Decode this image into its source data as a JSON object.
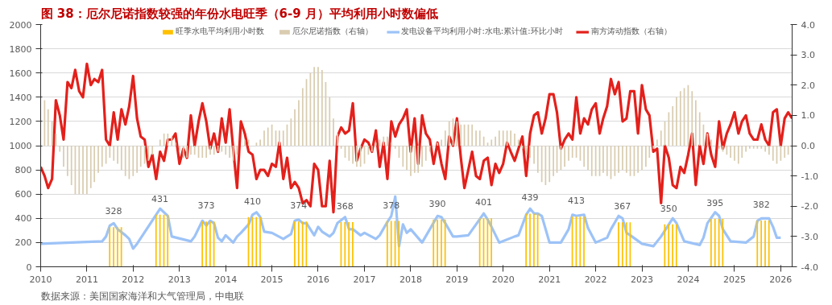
{
  "chart_data": {
    "type": "bar",
    "title": "图 38：厄尔尼诺指数较强的年份水电旺季（6-9 月）平均利用小时数偏低",
    "annotations": [
      "数据来源：美国国家海洋和大气管理局，中电联"
    ],
    "x": [
      "2010-01",
      "2010-02",
      "2010-03",
      "2010-04",
      "2010-05",
      "2010-06",
      "2010-07",
      "2010-08",
      "2010-09",
      "2010-10",
      "2010-11",
      "2010-12",
      "2011-01",
      "2011-02",
      "2011-03",
      "2011-04",
      "2011-05",
      "2011-06",
      "2011-07",
      "2011-08",
      "2011-09",
      "2011-10",
      "2011-11",
      "2011-12",
      "2012-01",
      "2012-02",
      "2012-03",
      "2012-04",
      "2012-05",
      "2012-06",
      "2012-07",
      "2012-08",
      "2012-09",
      "2012-10",
      "2012-11",
      "2012-12",
      "2013-01",
      "2013-02",
      "2013-03",
      "2013-04",
      "2013-05",
      "2013-06",
      "2013-07",
      "2013-08",
      "2013-09",
      "2013-10",
      "2013-11",
      "2013-12",
      "2014-01",
      "2014-02",
      "2014-03",
      "2014-04",
      "2014-05",
      "2014-06",
      "2014-07",
      "2014-08",
      "2014-09",
      "2014-10",
      "2014-11",
      "2014-12",
      "2015-01",
      "2015-02",
      "2015-03",
      "2015-04",
      "2015-05",
      "2015-06",
      "2015-07",
      "2015-08",
      "2015-09",
      "2015-10",
      "2015-11",
      "2015-12",
      "2016-01",
      "2016-02",
      "2016-03",
      "2016-04",
      "2016-05",
      "2016-06",
      "2016-07",
      "2016-08",
      "2016-09",
      "2016-10",
      "2016-11",
      "2016-12",
      "2017-01",
      "2017-02",
      "2017-03",
      "2017-04",
      "2017-05",
      "2017-06",
      "2017-07",
      "2017-08",
      "2017-09",
      "2017-10",
      "2017-11",
      "2017-12",
      "2018-01",
      "2018-02",
      "2018-03",
      "2018-04",
      "2018-05",
      "2018-06",
      "2018-07",
      "2018-08",
      "2018-09",
      "2018-10",
      "2018-11",
      "2018-12",
      "2019-01",
      "2019-02",
      "2019-03",
      "2019-04",
      "2019-05",
      "2019-06",
      "2019-07",
      "2019-08",
      "2019-09",
      "2019-10",
      "2019-11",
      "2019-12",
      "2020-01",
      "2020-02",
      "2020-03",
      "2020-04",
      "2020-05",
      "2020-06",
      "2020-07",
      "2020-08",
      "2020-09",
      "2020-10",
      "2020-11",
      "2020-12",
      "2021-01",
      "2021-02",
      "2021-03",
      "2021-04",
      "2021-05",
      "2021-06",
      "2021-07",
      "2021-08",
      "2021-09",
      "2021-10",
      "2021-11",
      "2021-12",
      "2022-01",
      "2022-02",
      "2022-03",
      "2022-04",
      "2022-05",
      "2022-06",
      "2022-07",
      "2022-08",
      "2022-09",
      "2022-10",
      "2022-11",
      "2022-12",
      "2023-01",
      "2023-02",
      "2023-03",
      "2023-04",
      "2023-05",
      "2023-06",
      "2023-07",
      "2023-08",
      "2023-09",
      "2023-10",
      "2023-11",
      "2023-12",
      "2024-01",
      "2024-02",
      "2024-03",
      "2024-04",
      "2024-05",
      "2024-06",
      "2024-07",
      "2024-08",
      "2024-09",
      "2024-10",
      "2024-11",
      "2024-12",
      "2025-01",
      "2025-02",
      "2025-03",
      "2025-04",
      "2025-05",
      "2025-06",
      "2025-07",
      "2025-08",
      "2025-09",
      "2025-10",
      "2025-11",
      "2025-12",
      "2026-01",
      "2026-02",
      "2026-03",
      "2026-04"
    ],
    "series": [
      {
        "name": "旺季水电平均利用小时数",
        "color": "#ffc000",
        "x": [
          "2011-06-30",
          "2011-07-31",
          "2011-08-31",
          "2011-09-30",
          "2012-06-30",
          "2012-07-31",
          "2012-08-31",
          "2012-09-30",
          "2013-06-30",
          "2013-07-31",
          "2013-08-31",
          "2013-09-30",
          "2014-06-30",
          "2014-07-31",
          "2014-08-31",
          "2014-09-30",
          "2015-06-30",
          "2015-07-31",
          "2015-08-31",
          "2015-09-30",
          "2016-06-30",
          "2016-07-31",
          "2016-08-31",
          "2016-09-30",
          "2017-06-30",
          "2017-07-31",
          "2017-08-31",
          "2017-09-30",
          "2018-06-30",
          "2018-07-31",
          "2018-08-31",
          "2018-09-30",
          "2019-06-30",
          "2019-07-31",
          "2019-08-31",
          "2019-09-30",
          "2020-06-30",
          "2020-07-31",
          "2020-08-31",
          "2020-09-30",
          "2021-06-30",
          "2021-07-31",
          "2021-08-31",
          "2021-09-30",
          "2022-06-30",
          "2022-07-31",
          "2022-08-31",
          "2022-09-30",
          "2023-06-30",
          "2023-07-31",
          "2023-08-31",
          "2023-09-30",
          "2024-06-30",
          "2024-07-31",
          "2024-08-31",
          "2024-09-30",
          "2025-06-30",
          "2025-07-31",
          "2025-08-31",
          "2025-09-30"
        ],
        "values": [
          328,
          328,
          328,
          328,
          431,
          431,
          431,
          431,
          373,
          373,
          373,
          373,
          410,
          410,
          410,
          410,
          374,
          374,
          374,
          374,
          368,
          368,
          368,
          368,
          378,
          378,
          378,
          378,
          390,
          390,
          390,
          390,
          401,
          401,
          401,
          401,
          439,
          439,
          439,
          439,
          413,
          413,
          413,
          413,
          367,
          367,
          367,
          367,
          350,
          350,
          350,
          350,
          395,
          395,
          395,
          395,
          382,
          382,
          382,
          382
        ],
        "value_labels": [
          null,
          "328",
          null,
          null,
          null,
          "431",
          null,
          null,
          null,
          "373",
          null,
          null,
          null,
          "410",
          null,
          null,
          null,
          "374",
          null,
          null,
          null,
          "368",
          null,
          null,
          null,
          "378",
          null,
          null,
          null,
          "390",
          null,
          null,
          null,
          "401",
          null,
          null,
          null,
          "439",
          null,
          null,
          null,
          "413",
          null,
          null,
          null,
          "367",
          null,
          null,
          null,
          "350",
          null,
          null,
          null,
          "395",
          null,
          null,
          null,
          "382",
          null,
          null
        ]
      },
      {
        "name": "厄尔尼诺指数（右轴）",
        "type": "bar",
        "axis": "y2",
        "color": "#d9ccb0",
        "values": [
          null,
          1.5,
          1.2,
          0.8,
          0.4,
          -0.2,
          -0.7,
          -1.0,
          -1.3,
          -1.6,
          -1.6,
          -1.6,
          -1.6,
          -1.4,
          -1.2,
          -0.9,
          -0.7,
          -0.6,
          -0.4,
          -0.5,
          -0.6,
          -0.8,
          -1.0,
          -1.1,
          -1.0,
          -0.9,
          -0.7,
          -0.6,
          -0.5,
          -0.3,
          0.0,
          0.2,
          0.4,
          0.4,
          0.3,
          0.1,
          -0.2,
          -0.4,
          -0.4,
          -0.3,
          -0.3,
          -0.4,
          -0.4,
          -0.4,
          -0.3,
          -0.3,
          -0.2,
          -0.2,
          -0.3,
          -0.4,
          -0.5,
          -0.3,
          0.0,
          0.2,
          0.2,
          0.0,
          0.1,
          0.2,
          0.5,
          0.6,
          0.7,
          0.5,
          0.5,
          0.5,
          0.7,
          0.9,
          1.2,
          1.5,
          1.9,
          2.2,
          2.4,
          2.6,
          2.6,
          2.5,
          2.1,
          1.6,
          0.9,
          0.4,
          -0.1,
          -0.4,
          -0.5,
          -0.6,
          -0.7,
          -0.7,
          -0.6,
          -0.3,
          -0.2,
          0.1,
          0.2,
          0.3,
          0.3,
          0.1,
          -0.1,
          -0.4,
          -0.7,
          -0.8,
          -1.0,
          -0.9,
          -0.9,
          -0.7,
          -0.5,
          -0.2,
          0.0,
          0.1,
          0.2,
          0.5,
          0.8,
          0.9,
          0.8,
          0.7,
          0.7,
          0.7,
          0.7,
          0.5,
          0.5,
          0.3,
          0.1,
          0.2,
          0.3,
          0.5,
          0.5,
          0.5,
          0.5,
          0.4,
          0.2,
          -0.1,
          -0.3,
          -0.4,
          -0.6,
          -0.9,
          -1.2,
          -1.3,
          -1.2,
          -1.0,
          -0.9,
          -0.8,
          -0.7,
          -0.5,
          -0.4,
          -0.4,
          -0.5,
          -0.7,
          -0.8,
          -1.0,
          -1.0,
          -1.0,
          -0.9,
          -1.0,
          -1.1,
          -1.0,
          -0.9,
          -0.8,
          -0.9,
          -1.0,
          -1.0,
          -0.9,
          -0.8,
          -0.7,
          -0.4,
          -0.1,
          0.2,
          0.5,
          0.8,
          1.1,
          1.3,
          1.6,
          1.8,
          1.9,
          2.0,
          1.8,
          1.5,
          1.1,
          0.7,
          0.4,
          0.2,
          0.0,
          -0.1,
          -0.2,
          -0.3,
          -0.4,
          -0.5,
          -0.6,
          -0.4,
          -0.2,
          -0.1,
          -0.1,
          -0.1,
          -0.1,
          -0.2,
          -0.3,
          -0.5,
          -0.6,
          -0.5,
          -0.4,
          -0.3,
          null
        ]
      },
      {
        "name": "发电设备平均利用小时:水电:累计值:环比小时",
        "type": "line",
        "color": "#9dc3f7",
        "x": [
          "2010-01",
          "2011-05",
          "2011-06",
          "2011-07",
          "2011-08",
          "2011-09",
          "2011-11",
          "2011-12",
          "2012-01",
          "2012-02",
          "2012-08",
          "2012-10",
          "2012-11",
          "2013-04",
          "2013-05",
          "2013-07",
          "2013-08",
          "2013-09",
          "2013-10",
          "2013-11",
          "2013-12",
          "2014-01",
          "2014-03",
          "2014-04",
          "2014-05",
          "2014-07",
          "2014-08",
          "2014-09",
          "2014-10",
          "2014-11",
          "2015-01",
          "2015-04",
          "2015-06",
          "2015-07",
          "2015-08",
          "2015-09",
          "2015-10",
          "2015-12",
          "2016-01",
          "2016-02",
          "2016-04",
          "2016-05",
          "2016-06",
          "2016-08",
          "2016-09",
          "2016-10",
          "2016-12",
          "2017-01",
          "2017-04",
          "2017-05",
          "2017-07",
          "2017-08",
          "2017-09",
          "2017-10",
          "2017-11",
          "2017-12",
          "2018-01",
          "2018-04",
          "2018-06",
          "2018-08",
          "2018-09",
          "2018-10",
          "2018-12",
          "2019-01",
          "2019-04",
          "2019-06",
          "2019-08",
          "2019-09",
          "2019-10",
          "2019-12",
          "2020-04",
          "2020-05",
          "2020-07",
          "2020-08",
          "2020-09",
          "2020-10",
          "2020-11",
          "2021-01",
          "2021-04",
          "2021-06",
          "2021-07",
          "2021-08",
          "2021-10",
          "2021-11",
          "2022-01",
          "2022-04",
          "2022-05",
          "2022-07",
          "2022-08",
          "2022-09",
          "2022-10",
          "2023-01",
          "2023-04",
          "2023-06",
          "2023-09",
          "2023-10",
          "2023-12",
          "2024-04",
          "2024-05",
          "2024-06",
          "2024-08",
          "2024-09",
          "2024-10",
          "2024-12",
          "2025-04",
          "2025-06",
          "2025-07",
          "2025-08",
          "2025-10",
          "2025-11",
          "2025-12",
          "2026-01"
        ],
        "values": [
          190,
          210,
          250,
          340,
          360,
          310,
          260,
          230,
          150,
          190,
          480,
          420,
          250,
          210,
          250,
          380,
          340,
          380,
          360,
          240,
          210,
          260,
          200,
          250,
          280,
          350,
          430,
          450,
          410,
          290,
          280,
          230,
          270,
          380,
          390,
          360,
          360,
          260,
          330,
          290,
          250,
          280,
          360,
          410,
          310,
          310,
          260,
          280,
          230,
          260,
          370,
          420,
          580,
          170,
          350,
          280,
          310,
          200,
          310,
          420,
          410,
          360,
          250,
          250,
          260,
          350,
          440,
          390,
          330,
          200,
          250,
          260,
          430,
          480,
          440,
          440,
          420,
          200,
          200,
          310,
          430,
          420,
          430,
          320,
          200,
          240,
          310,
          420,
          400,
          280,
          260,
          190,
          170,
          250,
          400,
          360,
          210,
          180,
          240,
          360,
          450,
          420,
          310,
          210,
          200,
          250,
          380,
          400,
          400,
          330,
          240,
          240
        ]
      },
      {
        "name": "南方涛动指数（右轴）",
        "type": "line",
        "axis": "y2",
        "color": "#e3201b",
        "values": [
          -0.7,
          -1.0,
          -1.4,
          -1.1,
          1.5,
          1.0,
          0.2,
          2.1,
          1.9,
          2.5,
          1.8,
          1.6,
          2.7,
          2.0,
          2.2,
          2.1,
          2.5,
          0.2,
          0.0,
          1.1,
          0.2,
          1.2,
          0.7,
          1.3,
          2.3,
          0.9,
          0.3,
          0.2,
          -0.7,
          -0.3,
          -1.1,
          -0.2,
          -0.5,
          0.2,
          0.2,
          0.4,
          -0.6,
          -0.1,
          -0.4,
          1.0,
          0.0,
          0.8,
          1.4,
          0.8,
          -0.1,
          0.4,
          -0.2,
          0.9,
          0.1,
          1.2,
          -0.1,
          -1.4,
          0.8,
          0.4,
          -0.2,
          -0.3,
          -1.1,
          -0.8,
          -0.8,
          -1.0,
          -0.6,
          -0.7,
          0.1,
          -1.1,
          -0.4,
          -1.4,
          -1.2,
          -1.4,
          -1.9,
          -1.8,
          -2.0,
          -0.6,
          -0.8,
          -2.0,
          -2.0,
          -0.5,
          -2.2,
          0.3,
          0.6,
          0.4,
          0.5,
          1.4,
          -0.5,
          -0.1,
          0.2,
          0.1,
          -0.2,
          0.5,
          -0.7,
          0.1,
          -1.1,
          0.8,
          0.3,
          0.7,
          0.9,
          1.2,
          -0.2,
          0.9,
          -0.6,
          1.0,
          0.4,
          0.2,
          -0.6,
          0.1,
          -0.6,
          -1.1,
          0.3,
          0.0,
          0.9,
          -0.4,
          -1.4,
          -0.8,
          -0.2,
          -1.0,
          -1.1,
          -0.5,
          -0.4,
          -1.3,
          -0.6,
          -0.9,
          -0.6,
          0.1,
          -0.2,
          -0.5,
          -0.1,
          0.3,
          -1.0,
          0.4,
          1.0,
          1.1,
          0.4,
          0.9,
          1.7,
          1.7,
          1.1,
          -0.1,
          0.2,
          0.4,
          0.2,
          1.6,
          0.4,
          0.9,
          0.7,
          1.2,
          1.4,
          0.4,
          0.9,
          1.3,
          2.2,
          1.7,
          2.1,
          0.8,
          0.9,
          1.8,
          1.8,
          0.4,
          2.0,
          1.2,
          1.0,
          -0.2,
          -0.1,
          -1.9,
          0.0,
          -0.4,
          -1.3,
          -1.4,
          -0.7,
          -0.9,
          -0.3,
          0.4,
          -1.3,
          0.0,
          -0.6,
          0.4,
          -0.3,
          -0.7,
          0.8,
          -0.1,
          0.4,
          0.7,
          1.1,
          0.4,
          0.8,
          1.0,
          0.4,
          0.2,
          0.2,
          0.7,
          0.2,
          0.0,
          1.1,
          1.2,
          0.0,
          0.9,
          1.1,
          0.9
        ]
      }
    ],
    "xlim": [
      "2010-01",
      "2026-04"
    ],
    "xticks": [
      "2010",
      "2011",
      "2012",
      "2013",
      "2014",
      "2015",
      "2016",
      "2017",
      "2018",
      "2019",
      "2020",
      "2021",
      "2022",
      "2023",
      "2024",
      "2025",
      "2026"
    ],
    "ylim": [
      0,
      2000
    ],
    "yticks": [
      0,
      200,
      400,
      600,
      800,
      1000,
      1200,
      1400,
      1600,
      1800,
      2000
    ],
    "y2lim": [
      -4,
      4
    ],
    "y2ticks": [
      {
        "value": -4,
        "label": "-4.0"
      },
      {
        "value": -3,
        "label": "-3.0"
      },
      {
        "value": -2,
        "label": "-2.0"
      },
      {
        "value": -1,
        "label": "-1.0"
      },
      {
        "value": 0,
        "label": "0.0"
      },
      {
        "value": 1,
        "label": "1.0"
      },
      {
        "value": 2,
        "label": "2.0"
      },
      {
        "value": 3,
        "label": "3.0"
      },
      {
        "value": 4,
        "label": "4.0"
      }
    ],
    "grid": "y",
    "legend": "top"
  }
}
